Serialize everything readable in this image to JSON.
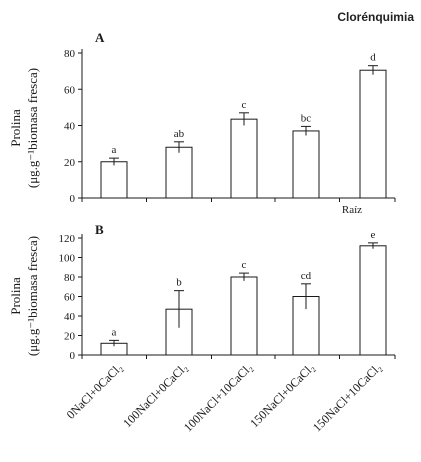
{
  "header": {
    "title": "Clorénquimia"
  },
  "chart_data": [
    {
      "type": "bar",
      "panel": "A",
      "ylabel": "Prolina",
      "ylabel_units": "(μg.g⁻¹biomasa fresca)",
      "ylim": [
        0,
        80
      ],
      "yticks": [
        0,
        20,
        40,
        60,
        80
      ],
      "categories": [
        "0NaCl+0CaCl₂",
        "100NaCl+0CaCl₂",
        "100NaCl+10CaCl₂",
        "150NaCl+0CaCl₂",
        "150NaCl+10CaCl₂"
      ],
      "values": [
        20,
        28,
        43.5,
        37,
        70.5
      ],
      "errors": [
        2,
        3,
        3.5,
        2.5,
        2.5
      ],
      "letters": [
        "a",
        "ab",
        "c",
        "bc",
        "d"
      ],
      "note": "Raíz"
    },
    {
      "type": "bar",
      "panel": "B",
      "ylabel": "Prolina",
      "ylabel_units": "(μg.g⁻¹biomasa fresca)",
      "ylim": [
        0,
        120
      ],
      "yticks": [
        0,
        20,
        40,
        60,
        80,
        100,
        120
      ],
      "categories": [
        "0NaCl+0CaCl₂",
        "100NaCl+0CaCl₂",
        "100NaCl+10CaCl₂",
        "150NaCl+0CaCl₂",
        "150NaCl+10CaCl₂"
      ],
      "values": [
        12,
        47,
        80,
        60,
        112
      ],
      "errors": [
        3,
        19,
        4,
        13,
        3
      ],
      "letters": [
        "a",
        "b",
        "c",
        "cd",
        "e"
      ]
    }
  ]
}
